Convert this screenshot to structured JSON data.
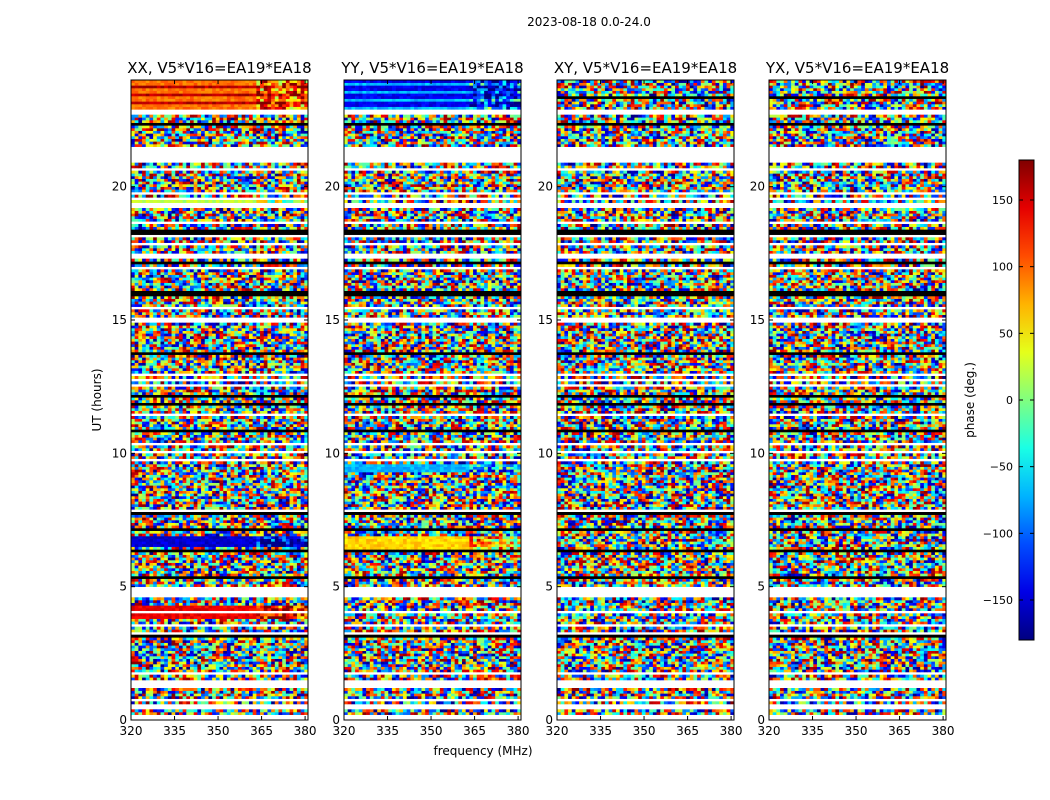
{
  "figure": {
    "suptitle": "2023-08-18 0.0-24.0"
  },
  "chart_data": {
    "type": "heatmap",
    "suptitle": "2023-08-18 0.0-24.0",
    "xlabel": "frequency (MHz)",
    "ylabel": "UT (hours)",
    "xlim": [
      320,
      381
    ],
    "ylim": [
      0,
      24
    ],
    "x_ticks": [
      320,
      335,
      350,
      365,
      380
    ],
    "y_ticks": [
      0,
      5,
      10,
      15,
      20
    ],
    "panels": [
      {
        "title": "XX, V5*V16=EA19*EA18",
        "bands": [
          {
            "t0": 22.75,
            "t1": 24.0,
            "phase": 95,
            "note": "bands near 23.5 h alternate yellow/red"
          },
          {
            "t0": 6.5,
            "t1": 6.95,
            "phase": -150
          },
          {
            "t0": 3.8,
            "t1": 4.3,
            "phase": 140
          },
          {
            "t0": 19.35,
            "t1": 19.5,
            "phase": 20
          }
        ]
      },
      {
        "title": "YY, V5*V16=EA19*EA18",
        "bands": [
          {
            "t0": 22.75,
            "t1": 24.0,
            "phase": -140,
            "note": "blue/cyan bands"
          },
          {
            "t0": 6.4,
            "t1": 6.95,
            "phase": 60
          },
          {
            "t0": 9.3,
            "t1": 9.6,
            "phase": -70
          }
        ]
      },
      {
        "title": "XY, V5*V16=EA19*EA18",
        "bands": []
      },
      {
        "title": "YX, V5*V16=EA19*EA18",
        "bands": []
      }
    ],
    "gaps_hours": [
      [
        21.0,
        21.5
      ],
      [
        22.7,
        22.9
      ],
      [
        14.9,
        15.05
      ],
      [
        4.6,
        5.0
      ],
      [
        1.3,
        1.5
      ],
      [
        0.45,
        0.55
      ]
    ],
    "colorbar": {
      "label": "phase (deg.)",
      "range": [
        -180,
        180
      ],
      "ticks": [
        150,
        100,
        50,
        0,
        -50,
        -100,
        -150
      ],
      "tick_labels": [
        "150",
        "100",
        "50",
        "0",
        "−50",
        "−100",
        "−150"
      ],
      "colormap": "jet"
    },
    "grid": false
  }
}
